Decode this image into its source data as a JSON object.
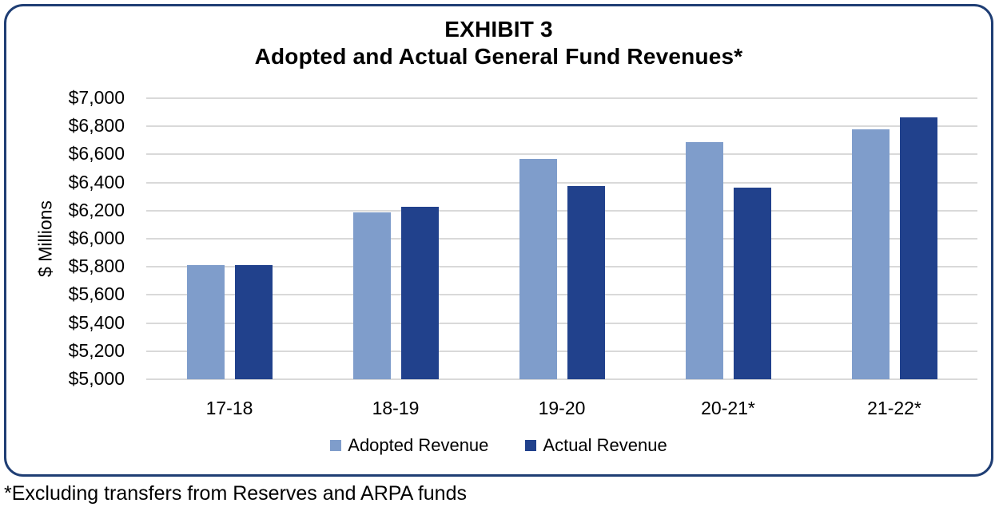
{
  "chart_data": {
    "type": "bar",
    "title": "EXHIBIT 3",
    "subtitle": "Adopted and Actual General Fund Revenues*",
    "ylabel": "$ Millions",
    "categories": [
      "17-18",
      "18-19",
      "19-20",
      "20-21*",
      "21-22*"
    ],
    "series": [
      {
        "name": "Adopted Revenue",
        "color": "#7F9DCB",
        "values": [
          5815,
          6185,
          6570,
          6685,
          6780
        ]
      },
      {
        "name": "Actual Revenue",
        "color": "#21418C",
        "values": [
          5810,
          6230,
          6375,
          6365,
          6865
        ]
      }
    ],
    "ylim": [
      5000,
      7000
    ],
    "ytick_step": 200,
    "ytick_prefix": "$",
    "grid": true,
    "gridline_color": "#D9D9D9",
    "legend_position": "bottom",
    "footnote": "*Excluding transfers from Reserves and ARPA funds",
    "frame_border_color": "#1F3E74"
  }
}
